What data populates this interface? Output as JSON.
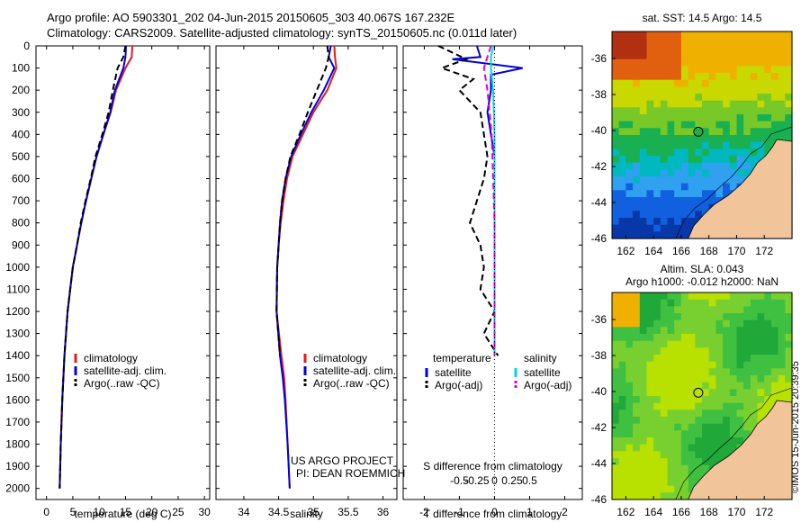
{
  "title_line1": "Argo profile: AO 5903301_202 04-Jun-2015 20150605_303 40.067S 167.232E",
  "title_line2": "Climatology: CARS2009. Satellite-adjusted climatology: synTS_20150605.nc (0.011d later)",
  "footer_stamp": "©IMOS 15-Jun-2015 20:39:35",
  "colors": {
    "climatology": "#e41a1c",
    "satellite": "#0000e0",
    "argo": "#000000",
    "sal_satellite": "#00d8e8",
    "sal_argo": "#e000e0",
    "land": "#f2c49a"
  },
  "chart_data": [
    {
      "type": "line",
      "xlabel": "temperature (deg C)",
      "xlim": [
        -2,
        31
      ],
      "xticks": [
        "0",
        "5",
        "10",
        "15",
        "20",
        "25",
        "30"
      ],
      "ylim": [
        0,
        2050
      ],
      "yticks": [
        "0",
        "100",
        "200",
        "300",
        "400",
        "500",
        "600",
        "700",
        "800",
        "900",
        "1000",
        "1100",
        "1200",
        "1300",
        "1400",
        "1500",
        "1600",
        "1700",
        "1800",
        "1900",
        "2000"
      ],
      "legend": [
        "climatology",
        "satellite-adj. clim.",
        "Argo(..raw -QC)"
      ],
      "series": [
        {
          "name": "climatology",
          "style": "solid",
          "color_key": "climatology",
          "depth": [
            0,
            50,
            100,
            200,
            300,
            400,
            500,
            600,
            700,
            800,
            900,
            1000,
            1200,
            1400,
            1600,
            1800,
            2000
          ],
          "values": [
            16.3,
            16.2,
            15.0,
            13.2,
            12.2,
            10.8,
            9.5,
            8.5,
            7.5,
            6.6,
            5.8,
            5.0,
            4.0,
            3.4,
            3.0,
            2.7,
            2.5
          ]
        },
        {
          "name": "satellite-adj. clim.",
          "style": "solid",
          "color_key": "satellite",
          "depth": [
            0,
            50,
            100,
            200,
            300,
            400,
            500,
            600,
            700,
            800,
            900,
            1000,
            1200,
            1400,
            1600,
            1800,
            2000
          ],
          "values": [
            15.1,
            15.0,
            14.6,
            13.0,
            12.1,
            10.8,
            9.5,
            8.5,
            7.5,
            6.6,
            5.8,
            5.0,
            4.0,
            3.4,
            3.0,
            2.7,
            2.5
          ]
        },
        {
          "name": "Argo(..raw -QC)",
          "style": "dashed",
          "color_key": "argo",
          "depth": [
            0,
            50,
            100,
            200,
            300,
            400,
            500,
            600,
            700,
            800,
            900,
            1000,
            1200,
            1400,
            1600,
            1800,
            2000
          ],
          "values": [
            15.0,
            14.6,
            13.5,
            12.6,
            11.8,
            10.6,
            9.3,
            8.4,
            7.4,
            6.5,
            5.8,
            5.0,
            4.0,
            3.4,
            3.0,
            2.7,
            2.5
          ]
        }
      ]
    },
    {
      "type": "line",
      "xlabel": "salinity",
      "xlim": [
        33.6,
        36.2
      ],
      "xticks": [
        "34",
        "34.5",
        "35",
        "35.5",
        "36"
      ],
      "ylim": [
        0,
        2050
      ],
      "legend": [
        "climatology",
        "satellite-adj. clim.",
        "Argo(..raw -QC)"
      ],
      "annotation": [
        "US ARGO PROJECT",
        "PI: DEAN ROEMMICH"
      ],
      "series": [
        {
          "name": "climatology",
          "style": "solid",
          "color_key": "climatology",
          "depth": [
            0,
            50,
            100,
            200,
            300,
            400,
            500,
            600,
            700,
            800,
            900,
            1000,
            1200,
            1400,
            1500,
            1600,
            1800,
            2000
          ],
          "values": [
            35.3,
            35.31,
            35.33,
            35.2,
            35.0,
            34.85,
            34.7,
            34.62,
            34.57,
            34.53,
            34.5,
            34.48,
            34.47,
            34.54,
            34.58,
            34.6,
            34.63,
            34.66
          ]
        },
        {
          "name": "satellite-adj. clim.",
          "style": "solid",
          "color_key": "satellite",
          "depth": [
            0,
            50,
            100,
            200,
            300,
            400,
            500,
            600,
            700,
            800,
            900,
            1000,
            1200,
            1400,
            1500,
            1600,
            1800,
            2000
          ],
          "values": [
            35.25,
            35.22,
            35.3,
            35.15,
            34.97,
            34.82,
            34.68,
            34.6,
            34.55,
            34.52,
            34.5,
            34.48,
            34.47,
            34.52,
            34.56,
            34.59,
            34.63,
            34.66
          ]
        },
        {
          "name": "Argo(..raw -QC)",
          "style": "dashed",
          "color_key": "argo",
          "depth": [
            0,
            50,
            100,
            200,
            300,
            400,
            500,
            600,
            700,
            800,
            900,
            1000,
            1200,
            1400
          ],
          "values": [
            35.2,
            35.22,
            35.18,
            35.05,
            34.92,
            34.8,
            34.67,
            34.6,
            34.55,
            34.52,
            34.5,
            34.48,
            34.47,
            34.52
          ]
        }
      ]
    },
    {
      "type": "line",
      "xlabel_top": "S difference from climatology",
      "xlabel": "T difference from climatology",
      "s_ticks": [
        "-0.5",
        "-0.25",
        "0",
        "0.25",
        "0.5"
      ],
      "xlim": [
        -2.6,
        2.5
      ],
      "xticks": [
        "-2",
        "-1",
        "0",
        "1",
        "2"
      ],
      "ylim": [
        0,
        2050
      ],
      "legend_headings": [
        "temperature",
        "salinity"
      ],
      "legend": [
        "satellite",
        "Argo(-adj)",
        "satellite",
        "Argo(-adj)"
      ],
      "series": [
        {
          "name": "satellite",
          "group": "temperature",
          "style": "solid",
          "color_key": "satellite",
          "depth": [
            0,
            50,
            60,
            100,
            130,
            200,
            300,
            400,
            500,
            600,
            700,
            800,
            900,
            1000,
            1200,
            1400
          ],
          "values": [
            -0.5,
            -0.4,
            -1.2,
            0.8,
            -0.1,
            -0.1,
            -0.2,
            -0.1,
            0.0,
            0.0,
            0.0,
            0.0,
            0.0,
            0.0,
            0.0,
            0.0
          ]
        },
        {
          "name": "Argo(-adj)",
          "group": "temperature",
          "style": "dashed",
          "color_key": "argo",
          "depth": [
            0,
            60,
            100,
            150,
            200,
            300,
            400,
            500,
            600,
            700,
            800,
            900,
            1000,
            1100,
            1200,
            1300,
            1400
          ],
          "values": [
            -1.6,
            -0.8,
            -1.5,
            -0.6,
            -1.0,
            -0.4,
            -0.3,
            -0.2,
            -0.3,
            -0.5,
            -0.7,
            -0.4,
            -0.3,
            -0.4,
            0.0,
            -0.3,
            0.1
          ]
        },
        {
          "name": "satellite",
          "group": "salinity",
          "style": "solid",
          "color_key": "sal_satellite",
          "depth": [
            0,
            50,
            100,
            200,
            300,
            400,
            500,
            600,
            700,
            800,
            900,
            1000,
            1200,
            1400
          ],
          "values": [
            -0.02,
            -0.05,
            -0.05,
            -0.02,
            -0.01,
            0.0,
            0.0,
            0.0,
            0.0,
            0.0,
            0.0,
            0.0,
            0.0,
            0.0
          ]
        },
        {
          "name": "Argo(-adj)",
          "group": "salinity",
          "style": "dashed",
          "color_key": "sal_argo",
          "depth": [
            0,
            50,
            100,
            200,
            300,
            400,
            500,
            600,
            700,
            800,
            900,
            1000,
            1200,
            1400
          ],
          "values": [
            -0.05,
            -0.1,
            -0.15,
            -0.1,
            -0.07,
            -0.04,
            -0.03,
            -0.02,
            -0.01,
            0.0,
            0.0,
            0.0,
            0.0,
            0.0
          ]
        }
      ]
    },
    {
      "type": "heatmap",
      "title": "sat. SST: 14.5  Argo: 14.5",
      "xlim": [
        161,
        174
      ],
      "ylim": [
        -46,
        -34.5
      ],
      "xticks": [
        "162",
        "164",
        "166",
        "168",
        "170",
        "172"
      ],
      "yticks": [
        "-36",
        "-38",
        "-40",
        "-42",
        "-44",
        "-46"
      ],
      "argo_position": {
        "lon": 167.232,
        "lat": -40.067
      }
    },
    {
      "type": "heatmap",
      "title_line1": "Altim. SLA: 0.043",
      "title_line2": "Argo h1000: -0.012 h2000: NaN",
      "xlim": [
        161,
        174
      ],
      "ylim": [
        -46,
        -34.5
      ],
      "xticks": [
        "162",
        "164",
        "166",
        "168",
        "170",
        "172"
      ],
      "yticks": [
        "-36",
        "-38",
        "-40",
        "-42",
        "-44",
        "-46"
      ],
      "argo_position": {
        "lon": 167.232,
        "lat": -40.067
      }
    }
  ]
}
